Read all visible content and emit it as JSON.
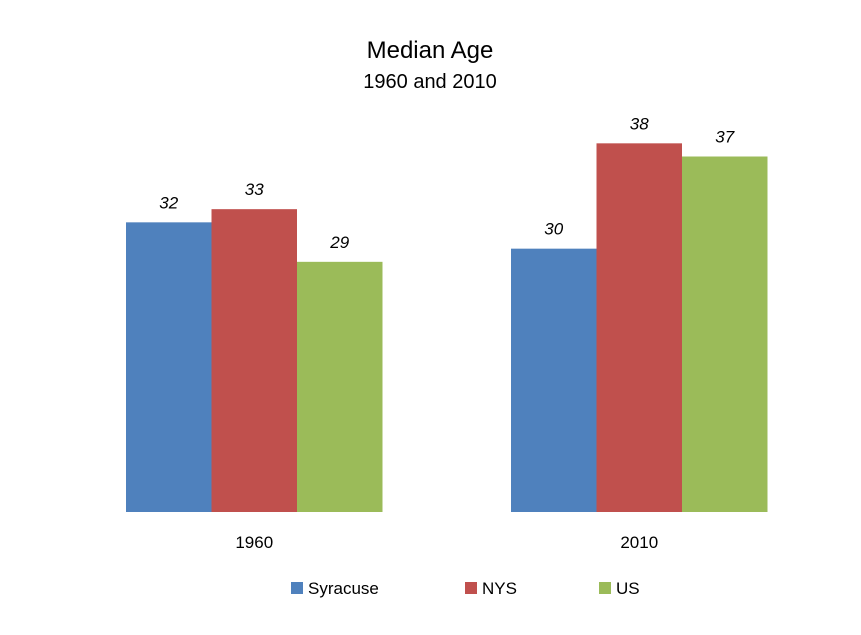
{
  "chart_data": {
    "type": "bar",
    "title": "Median Age",
    "subtitle": "1960 and 2010",
    "categories": [
      "1960",
      "2010"
    ],
    "series": [
      {
        "name": "Syracuse",
        "color": "#4F81BD",
        "values": [
          32,
          30
        ]
      },
      {
        "name": "NYS",
        "color": "#C0504D",
        "values": [
          33,
          38
        ]
      },
      {
        "name": "US",
        "color": "#9BBB59",
        "values": [
          29,
          37
        ]
      }
    ],
    "ylim": [
      10,
      40
    ],
    "grid": false,
    "legend": "bottom",
    "data_labels": true
  }
}
